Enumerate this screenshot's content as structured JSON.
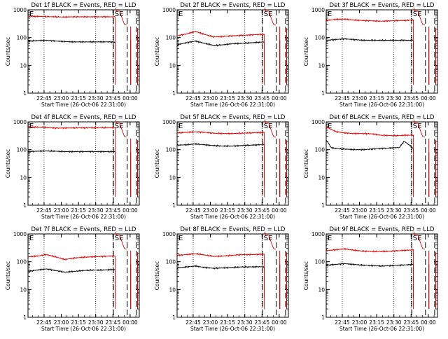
{
  "figure": {
    "start_time_label": "Start Time (26-Oct-06 22:31:00)",
    "ylabel": "Counts/sec",
    "x_tick_labels": [
      "22:45",
      "23:00",
      "23:15",
      "23:30",
      "23:45",
      "00:00"
    ],
    "y_tick_labels": [
      "1",
      "10",
      "100",
      "1000"
    ],
    "letters": [
      "E",
      "SE"
    ],
    "colors": {
      "events": "#000000",
      "lld": "#dd0000"
    }
  },
  "chart_data": [
    {
      "type": "line",
      "title": "Det 1f BLACK = Events, RED = LLD",
      "xlabel": "Start Time (26-Oct-06 22:31:00)",
      "ylabel": "Counts/sec",
      "ylim": [
        1,
        1000
      ],
      "yscale": "log",
      "x_unit": "minutes after 22:31:00",
      "series": [
        {
          "name": "BLACK = Events",
          "color": "#000000",
          "x": [
            0,
            8,
            16,
            24,
            32,
            40,
            48,
            56,
            64,
            72,
            76
          ],
          "y": [
            75,
            78,
            80,
            75,
            72,
            70,
            70,
            70,
            70,
            70,
            68
          ]
        },
        {
          "name": "RED = LLD",
          "color": "#dd0000",
          "x": [
            0,
            8,
            16,
            24,
            32,
            40,
            48,
            56,
            64,
            72,
            76
          ],
          "y": [
            560,
            580,
            570,
            560,
            550,
            560,
            560,
            560,
            560,
            560,
            560
          ]
        }
      ]
    },
    {
      "type": "line",
      "title": "Det 2f BLACK = Events, RED = LLD",
      "xlabel": "Start Time (26-Oct-06 22:31:00)",
      "ylabel": "Counts/sec",
      "ylim": [
        1,
        1000
      ],
      "yscale": "log",
      "x_unit": "minutes after 22:31:00",
      "series": [
        {
          "name": "BLACK = Events",
          "color": "#000000",
          "x": [
            0,
            8,
            16,
            24,
            32,
            40,
            48,
            56,
            64,
            72,
            76
          ],
          "y": [
            55,
            65,
            75,
            62,
            52,
            55,
            60,
            62,
            65,
            68,
            70
          ]
        },
        {
          "name": "RED = LLD",
          "color": "#dd0000",
          "x": [
            0,
            8,
            16,
            24,
            32,
            40,
            48,
            56,
            64,
            72,
            76
          ],
          "y": [
            115,
            135,
            165,
            130,
            105,
            110,
            115,
            120,
            125,
            130,
            130
          ]
        }
      ]
    },
    {
      "type": "line",
      "title": "Det 3f BLACK = Events, RED = LLD",
      "xlabel": "Start Time (26-Oct-06 22:31:00)",
      "ylabel": "Counts/sec",
      "ylim": [
        1,
        1000
      ],
      "yscale": "log",
      "x_unit": "minutes after 22:31:00",
      "series": [
        {
          "name": "BLACK = Events",
          "color": "#000000",
          "x": [
            0,
            8,
            16,
            24,
            32,
            40,
            48,
            56,
            64,
            72,
            76
          ],
          "y": [
            80,
            85,
            90,
            85,
            80,
            80,
            80,
            80,
            80,
            80,
            80
          ]
        },
        {
          "name": "RED = LLD",
          "color": "#dd0000",
          "x": [
            0,
            8,
            16,
            24,
            32,
            40,
            48,
            56,
            64,
            72,
            76
          ],
          "y": [
            420,
            450,
            460,
            430,
            410,
            400,
            390,
            400,
            410,
            420,
            430
          ]
        }
      ]
    },
    {
      "type": "line",
      "title": "Det 4f BLACK = Events, RED = LLD",
      "xlabel": "Start Time (26-Oct-06 22:31:00)",
      "ylabel": "Counts/sec",
      "ylim": [
        1,
        1000
      ],
      "yscale": "log",
      "x_unit": "minutes after 22:31:00",
      "series": [
        {
          "name": "BLACK = Events",
          "color": "#000000",
          "x": [
            0,
            8,
            16,
            24,
            32,
            40,
            48,
            56,
            64,
            72,
            76
          ],
          "y": [
            85,
            88,
            90,
            88,
            85,
            85,
            85,
            85,
            85,
            85,
            85
          ]
        },
        {
          "name": "RED = LLD",
          "color": "#dd0000",
          "x": [
            0,
            8,
            16,
            24,
            32,
            40,
            48,
            56,
            64,
            72,
            76
          ],
          "y": [
            640,
            650,
            630,
            600,
            600,
            610,
            610,
            610,
            620,
            620,
            630
          ]
        }
      ]
    },
    {
      "type": "line",
      "title": "Det 5f BLACK = Events, RED = LLD",
      "xlabel": "Start Time (26-Oct-06 22:31:00)",
      "ylabel": "Counts/sec",
      "ylim": [
        1,
        1000
      ],
      "yscale": "log",
      "x_unit": "minutes after 22:31:00",
      "series": [
        {
          "name": "BLACK = Events",
          "color": "#000000",
          "x": [
            0,
            8,
            16,
            24,
            32,
            40,
            48,
            56,
            64,
            72,
            76
          ],
          "y": [
            145,
            150,
            160,
            150,
            140,
            135,
            135,
            140,
            145,
            150,
            150
          ]
        },
        {
          "name": "RED = LLD",
          "color": "#dd0000",
          "x": [
            0,
            8,
            16,
            24,
            32,
            40,
            48,
            56,
            64,
            72,
            76
          ],
          "y": [
            400,
            420,
            440,
            420,
            390,
            380,
            380,
            390,
            400,
            410,
            420
          ]
        }
      ]
    },
    {
      "type": "line",
      "title": "Det 6f BLACK = Events, RED = LLD",
      "xlabel": "Start Time (26-Oct-06 22:31:00)",
      "ylabel": "Counts/sec",
      "ylim": [
        1,
        1000
      ],
      "yscale": "log",
      "x_unit": "minutes after 22:31:00",
      "series": [
        {
          "name": "BLACK = Events",
          "color": "#000000",
          "x": [
            0,
            2,
            4,
            8,
            16,
            24,
            32,
            40,
            48,
            56,
            64,
            68,
            72,
            76
          ],
          "y": [
            220,
            170,
            120,
            110,
            105,
            100,
            100,
            105,
            110,
            115,
            120,
            200,
            150,
            110
          ]
        },
        {
          "name": "RED = LLD",
          "color": "#dd0000",
          "x": [
            0,
            2,
            4,
            8,
            16,
            24,
            32,
            40,
            48,
            56,
            64,
            68,
            72,
            76
          ],
          "y": [
            650,
            600,
            550,
            450,
            400,
            380,
            380,
            370,
            330,
            320,
            320,
            330,
            330,
            330
          ]
        }
      ]
    },
    {
      "type": "line",
      "title": "Det 7f BLACK = Events, RED = LLD",
      "xlabel": "Start Time (26-Oct-06 22:31:00)",
      "ylabel": "Counts/sec",
      "ylim": [
        1,
        1000
      ],
      "yscale": "log",
      "x_unit": "minutes after 22:31:00",
      "series": [
        {
          "name": "BLACK = Events",
          "color": "#000000",
          "x": [
            0,
            8,
            16,
            24,
            32,
            40,
            48,
            56,
            64,
            72,
            76
          ],
          "y": [
            45,
            50,
            55,
            48,
            42,
            45,
            48,
            50,
            50,
            52,
            52
          ]
        },
        {
          "name": "RED = LLD",
          "color": "#dd0000",
          "x": [
            0,
            8,
            16,
            24,
            32,
            40,
            48,
            56,
            64,
            72,
            76
          ],
          "y": [
            150,
            160,
            180,
            150,
            120,
            135,
            145,
            150,
            155,
            160,
            160
          ]
        }
      ]
    },
    {
      "type": "line",
      "title": "Det 8f BLACK = Events, RED = LLD",
      "xlabel": "Start Time (26-Oct-06 22:31:00)",
      "ylabel": "Counts/sec",
      "ylim": [
        1,
        1000
      ],
      "yscale": "log",
      "x_unit": "minutes after 22:31:00",
      "series": [
        {
          "name": "BLACK = Events",
          "color": "#000000",
          "x": [
            0,
            8,
            16,
            24,
            32,
            40,
            48,
            56,
            64,
            72,
            76
          ],
          "y": [
            60,
            65,
            70,
            62,
            58,
            60,
            62,
            65,
            65,
            66,
            66
          ]
        },
        {
          "name": "RED = LLD",
          "color": "#dd0000",
          "x": [
            0,
            8,
            16,
            24,
            32,
            40,
            48,
            56,
            64,
            72,
            76
          ],
          "y": [
            170,
            180,
            195,
            175,
            155,
            160,
            170,
            180,
            180,
            185,
            185
          ]
        }
      ]
    },
    {
      "type": "line",
      "title": "Det 9f BLACK = Events, RED = LLD",
      "xlabel": "Start Time (26-Oct-06 22:31:00)",
      "ylabel": "Counts/sec",
      "ylim": [
        1,
        1000
      ],
      "yscale": "log",
      "x_unit": "minutes after 22:31:00",
      "series": [
        {
          "name": "BLACK = Events",
          "color": "#000000",
          "x": [
            0,
            8,
            16,
            24,
            32,
            40,
            48,
            56,
            64,
            72,
            76
          ],
          "y": [
            75,
            80,
            85,
            80,
            75,
            72,
            70,
            72,
            75,
            78,
            80
          ]
        },
        {
          "name": "RED = LLD",
          "color": "#dd0000",
          "x": [
            0,
            8,
            16,
            24,
            32,
            40,
            48,
            56,
            64,
            72,
            76
          ],
          "y": [
            250,
            270,
            290,
            260,
            240,
            235,
            235,
            240,
            250,
            260,
            270
          ]
        }
      ]
    }
  ]
}
